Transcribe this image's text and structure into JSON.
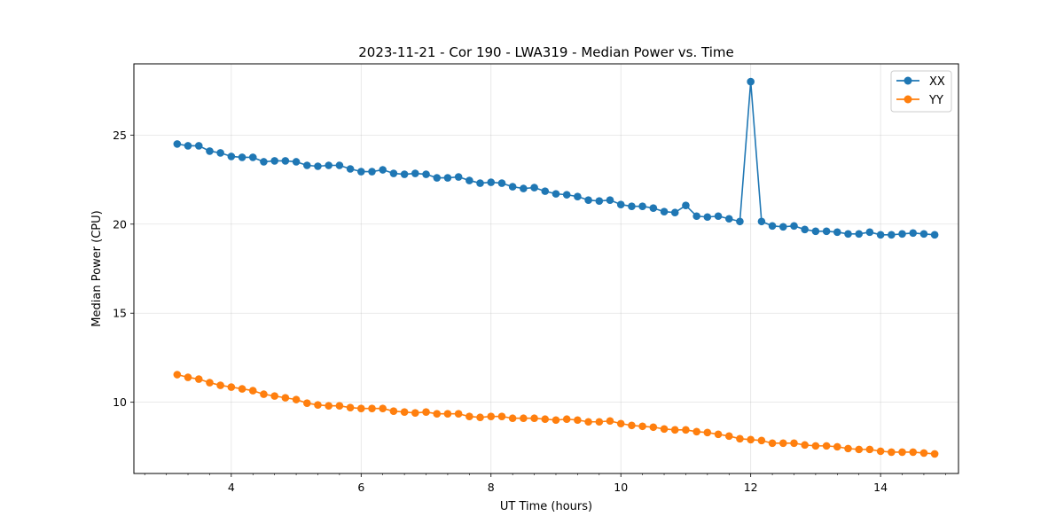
{
  "chart_data": {
    "type": "line",
    "title": "2023-11-21 - Cor 190 - LWA319 - Median Power vs. Time",
    "xlabel": "UT Time (hours)",
    "ylabel": "Median Power (CPU)",
    "xlim": [
      2.5,
      15.2
    ],
    "ylim": [
      6.0,
      29.0
    ],
    "xticks": [
      4,
      6,
      8,
      10,
      12,
      14
    ],
    "xtick_labels": [
      "4",
      "6",
      "8",
      "10",
      "12",
      "14"
    ],
    "xminor_step": 0.333333,
    "yticks": [
      10,
      15,
      20,
      25
    ],
    "ytick_labels": [
      "10",
      "15",
      "20",
      "25"
    ],
    "grid": true,
    "legend_position": "top-right",
    "x": [
      3.167,
      3.333,
      3.5,
      3.667,
      3.833,
      4.0,
      4.167,
      4.333,
      4.5,
      4.667,
      4.833,
      5.0,
      5.167,
      5.333,
      5.5,
      5.667,
      5.833,
      6.0,
      6.167,
      6.333,
      6.5,
      6.667,
      6.833,
      7.0,
      7.167,
      7.333,
      7.5,
      7.667,
      7.833,
      8.0,
      8.167,
      8.333,
      8.5,
      8.667,
      8.833,
      9.0,
      9.167,
      9.333,
      9.5,
      9.667,
      9.833,
      10.0,
      10.167,
      10.333,
      10.5,
      10.667,
      10.833,
      11.0,
      11.167,
      11.333,
      11.5,
      11.667,
      11.833,
      12.0,
      12.167,
      12.333,
      12.5,
      12.667,
      12.833,
      13.0,
      13.167,
      13.333,
      13.5,
      13.667,
      13.833,
      14.0,
      14.167,
      14.333,
      14.5,
      14.667,
      14.833
    ],
    "series": [
      {
        "name": "XX",
        "color": "#1f77b4",
        "values": [
          24.5,
          24.4,
          24.4,
          24.1,
          24.0,
          23.8,
          23.75,
          23.75,
          23.5,
          23.55,
          23.55,
          23.5,
          23.3,
          23.25,
          23.3,
          23.3,
          23.1,
          22.95,
          22.95,
          23.05,
          22.85,
          22.8,
          22.85,
          22.8,
          22.6,
          22.6,
          22.65,
          22.45,
          22.3,
          22.35,
          22.3,
          22.1,
          22.0,
          22.05,
          21.85,
          21.7,
          21.65,
          21.55,
          21.35,
          21.3,
          21.35,
          21.1,
          21.0,
          21.0,
          20.9,
          20.7,
          20.65,
          21.05,
          20.45,
          20.4,
          20.45,
          20.3,
          20.15,
          28.0,
          20.15,
          19.9,
          19.85,
          19.9,
          19.7,
          19.6,
          19.6,
          19.55,
          19.45,
          19.45,
          19.55,
          19.4,
          19.4,
          19.45,
          19.5,
          19.45,
          19.4
        ]
      },
      {
        "name": "YY",
        "color": "#ff7f0e",
        "values": [
          11.55,
          11.4,
          11.3,
          11.1,
          10.95,
          10.85,
          10.75,
          10.65,
          10.45,
          10.35,
          10.25,
          10.15,
          9.95,
          9.85,
          9.8,
          9.8,
          9.7,
          9.65,
          9.65,
          9.65,
          9.5,
          9.45,
          9.4,
          9.45,
          9.35,
          9.35,
          9.35,
          9.2,
          9.15,
          9.2,
          9.2,
          9.1,
          9.1,
          9.1,
          9.05,
          9.0,
          9.05,
          9.0,
          8.9,
          8.9,
          8.95,
          8.8,
          8.7,
          8.65,
          8.6,
          8.5,
          8.45,
          8.45,
          8.35,
          8.3,
          8.2,
          8.1,
          7.95,
          7.9,
          7.85,
          7.7,
          7.7,
          7.7,
          7.6,
          7.55,
          7.55,
          7.5,
          7.4,
          7.35,
          7.35,
          7.25,
          7.2,
          7.2,
          7.2,
          7.15,
          7.1
        ]
      }
    ]
  }
}
